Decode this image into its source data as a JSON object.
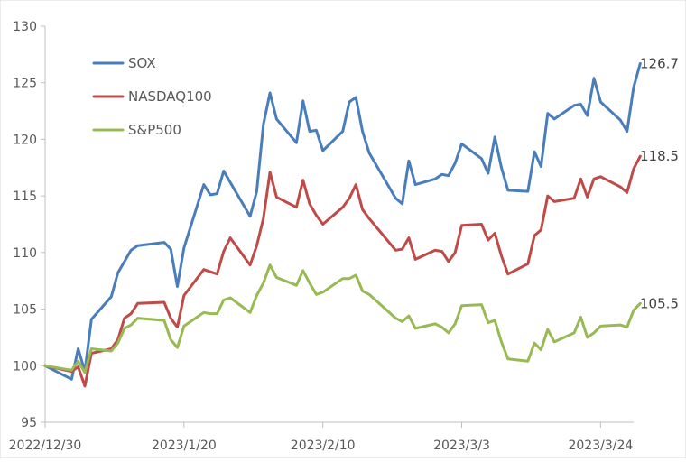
{
  "chart_data": {
    "type": "line",
    "title": "",
    "xlabel": "",
    "ylabel": "",
    "ylim": [
      95,
      130
    ],
    "yticks": [
      95,
      100,
      105,
      110,
      115,
      120,
      125,
      130
    ],
    "xlim": [
      "2022/12/30",
      "2023/3/29"
    ],
    "xticks": [
      "2022/12/30",
      "2023/1/20",
      "2023/2/10",
      "2023/3/3",
      "2023/3/24"
    ],
    "grid": false,
    "legend": "top-left",
    "series": [
      {
        "name": "SOX",
        "color": "#4a7ebb",
        "end_label": "126.7",
        "points": [
          [
            "2022/12/30",
            100.0
          ],
          [
            "2023/1/3",
            98.8
          ],
          [
            "2023/1/4",
            101.5
          ],
          [
            "2023/1/5",
            99.5
          ],
          [
            "2023/1/6",
            104.1
          ],
          [
            "2023/1/9",
            106.1
          ],
          [
            "2023/1/10",
            108.2
          ],
          [
            "2023/1/12",
            110.2
          ],
          [
            "2023/1/13",
            110.6
          ],
          [
            "2023/1/17",
            110.9
          ],
          [
            "2023/1/18",
            110.3
          ],
          [
            "2023/1/19",
            107.0
          ],
          [
            "2023/1/20",
            110.4
          ],
          [
            "2023/1/23",
            116.0
          ],
          [
            "2023/1/24",
            115.1
          ],
          [
            "2023/1/25",
            115.2
          ],
          [
            "2023/1/26",
            117.2
          ],
          [
            "2023/1/27",
            116.2
          ],
          [
            "2023/1/30",
            113.2
          ],
          [
            "2023/1/31",
            115.4
          ],
          [
            "2023/2/1",
            121.3
          ],
          [
            "2023/2/2",
            124.1
          ],
          [
            "2023/2/3",
            121.8
          ],
          [
            "2023/2/6",
            119.7
          ],
          [
            "2023/2/7",
            123.4
          ],
          [
            "2023/2/8",
            120.7
          ],
          [
            "2023/2/9",
            120.8
          ],
          [
            "2023/2/10",
            119.0
          ],
          [
            "2023/2/13",
            120.7
          ],
          [
            "2023/2/14",
            123.3
          ],
          [
            "2023/2/15",
            123.7
          ],
          [
            "2023/2/16",
            120.7
          ],
          [
            "2023/2/17",
            118.8
          ],
          [
            "2023/2/21",
            114.8
          ],
          [
            "2023/2/22",
            114.3
          ],
          [
            "2023/2/23",
            118.1
          ],
          [
            "2023/2/24",
            116.0
          ],
          [
            "2023/2/27",
            116.5
          ],
          [
            "2023/2/28",
            116.9
          ],
          [
            "2023/3/1",
            116.8
          ],
          [
            "2023/3/2",
            117.9
          ],
          [
            "2023/3/3",
            119.6
          ],
          [
            "2023/3/6",
            118.3
          ],
          [
            "2023/3/7",
            117.0
          ],
          [
            "2023/3/8",
            120.2
          ],
          [
            "2023/3/9",
            117.5
          ],
          [
            "2023/3/10",
            115.5
          ],
          [
            "2023/3/13",
            115.4
          ],
          [
            "2023/3/14",
            118.9
          ],
          [
            "2023/3/15",
            117.6
          ],
          [
            "2023/3/16",
            122.3
          ],
          [
            "2023/3/17",
            121.8
          ],
          [
            "2023/3/20",
            123.0
          ],
          [
            "2023/3/21",
            123.1
          ],
          [
            "2023/3/22",
            122.1
          ],
          [
            "2023/3/23",
            125.4
          ],
          [
            "2023/3/24",
            123.3
          ],
          [
            "2023/3/27",
            121.7
          ],
          [
            "2023/3/28",
            120.7
          ],
          [
            "2023/3/29",
            124.6
          ],
          [
            "2023/3/30",
            126.7
          ]
        ]
      },
      {
        "name": "NASDAQ100",
        "color": "#be4b48",
        "end_label": "118.5",
        "points": [
          [
            "2022/12/30",
            100.0
          ],
          [
            "2023/1/3",
            99.5
          ],
          [
            "2023/1/4",
            99.9
          ],
          [
            "2023/1/5",
            98.2
          ],
          [
            "2023/1/6",
            101.1
          ],
          [
            "2023/1/9",
            101.5
          ],
          [
            "2023/1/10",
            102.3
          ],
          [
            "2023/1/11",
            104.2
          ],
          [
            "2023/1/12",
            104.6
          ],
          [
            "2023/1/13",
            105.5
          ],
          [
            "2023/1/17",
            105.6
          ],
          [
            "2023/1/18",
            104.2
          ],
          [
            "2023/1/19",
            103.4
          ],
          [
            "2023/1/20",
            106.2
          ],
          [
            "2023/1/23",
            108.5
          ],
          [
            "2023/1/24",
            108.3
          ],
          [
            "2023/1/25",
            108.1
          ],
          [
            "2023/1/26",
            110.1
          ],
          [
            "2023/1/27",
            111.3
          ],
          [
            "2023/1/30",
            108.9
          ],
          [
            "2023/1/31",
            110.6
          ],
          [
            "2023/2/1",
            113.0
          ],
          [
            "2023/2/2",
            117.1
          ],
          [
            "2023/2/3",
            114.9
          ],
          [
            "2023/2/6",
            114.0
          ],
          [
            "2023/2/7",
            116.4
          ],
          [
            "2023/2/8",
            114.3
          ],
          [
            "2023/2/9",
            113.3
          ],
          [
            "2023/2/10",
            112.5
          ],
          [
            "2023/2/13",
            114.0
          ],
          [
            "2023/2/14",
            114.8
          ],
          [
            "2023/2/15",
            116.0
          ],
          [
            "2023/2/16",
            113.8
          ],
          [
            "2023/2/17",
            113.0
          ],
          [
            "2023/2/21",
            110.2
          ],
          [
            "2023/2/22",
            110.3
          ],
          [
            "2023/2/23",
            111.3
          ],
          [
            "2023/2/24",
            109.4
          ],
          [
            "2023/2/27",
            110.2
          ],
          [
            "2023/2/28",
            110.1
          ],
          [
            "2023/3/1",
            109.2
          ],
          [
            "2023/3/2",
            110.0
          ],
          [
            "2023/3/3",
            112.4
          ],
          [
            "2023/3/6",
            112.5
          ],
          [
            "2023/3/7",
            111.1
          ],
          [
            "2023/3/8",
            111.7
          ],
          [
            "2023/3/9",
            109.7
          ],
          [
            "2023/3/10",
            108.1
          ],
          [
            "2023/3/13",
            109.0
          ],
          [
            "2023/3/14",
            111.5
          ],
          [
            "2023/3/15",
            112.0
          ],
          [
            "2023/3/16",
            115.0
          ],
          [
            "2023/3/17",
            114.5
          ],
          [
            "2023/3/20",
            114.8
          ],
          [
            "2023/3/21",
            116.5
          ],
          [
            "2023/3/22",
            114.9
          ],
          [
            "2023/3/23",
            116.5
          ],
          [
            "2023/3/24",
            116.7
          ],
          [
            "2023/3/27",
            115.8
          ],
          [
            "2023/3/28",
            115.3
          ],
          [
            "2023/3/29",
            117.4
          ],
          [
            "2023/3/30",
            118.5
          ]
        ]
      },
      {
        "name": "S&P500",
        "color": "#98b954",
        "end_label": "105.5",
        "points": [
          [
            "2022/12/30",
            100.0
          ],
          [
            "2023/1/3",
            99.6
          ],
          [
            "2023/1/4",
            100.4
          ],
          [
            "2023/1/5",
            99.4
          ],
          [
            "2023/1/6",
            101.5
          ],
          [
            "2023/1/9",
            101.3
          ],
          [
            "2023/1/10",
            102.0
          ],
          [
            "2023/1/11",
            103.3
          ],
          [
            "2023/1/12",
            103.6
          ],
          [
            "2023/1/13",
            104.2
          ],
          [
            "2023/1/17",
            104.0
          ],
          [
            "2023/1/18",
            102.3
          ],
          [
            "2023/1/19",
            101.6
          ],
          [
            "2023/1/20",
            103.5
          ],
          [
            "2023/1/23",
            104.7
          ],
          [
            "2023/1/24",
            104.6
          ],
          [
            "2023/1/25",
            104.6
          ],
          [
            "2023/1/26",
            105.8
          ],
          [
            "2023/1/27",
            106.0
          ],
          [
            "2023/1/30",
            104.7
          ],
          [
            "2023/1/31",
            106.2
          ],
          [
            "2023/2/1",
            107.3
          ],
          [
            "2023/2/2",
            108.9
          ],
          [
            "2023/2/3",
            107.8
          ],
          [
            "2023/2/6",
            107.1
          ],
          [
            "2023/2/7",
            108.4
          ],
          [
            "2023/2/8",
            107.3
          ],
          [
            "2023/2/9",
            106.3
          ],
          [
            "2023/2/10",
            106.5
          ],
          [
            "2023/2/13",
            107.7
          ],
          [
            "2023/2/14",
            107.7
          ],
          [
            "2023/2/15",
            108.0
          ],
          [
            "2023/2/16",
            106.6
          ],
          [
            "2023/2/17",
            106.3
          ],
          [
            "2023/2/21",
            104.2
          ],
          [
            "2023/2/22",
            103.9
          ],
          [
            "2023/2/23",
            104.4
          ],
          [
            "2023/2/24",
            103.3
          ],
          [
            "2023/2/27",
            103.7
          ],
          [
            "2023/2/28",
            103.4
          ],
          [
            "2023/3/1",
            102.9
          ],
          [
            "2023/3/2",
            103.7
          ],
          [
            "2023/3/3",
            105.3
          ],
          [
            "2023/3/6",
            105.4
          ],
          [
            "2023/3/7",
            103.8
          ],
          [
            "2023/3/8",
            104.0
          ],
          [
            "2023/3/9",
            102.1
          ],
          [
            "2023/3/10",
            100.6
          ],
          [
            "2023/3/13",
            100.4
          ],
          [
            "2023/3/14",
            102.0
          ],
          [
            "2023/3/15",
            101.4
          ],
          [
            "2023/3/16",
            103.2
          ],
          [
            "2023/3/17",
            102.1
          ],
          [
            "2023/3/20",
            102.9
          ],
          [
            "2023/3/21",
            104.3
          ],
          [
            "2023/3/22",
            102.5
          ],
          [
            "2023/3/23",
            102.9
          ],
          [
            "2023/3/24",
            103.5
          ],
          [
            "2023/3/27",
            103.6
          ],
          [
            "2023/3/28",
            103.4
          ],
          [
            "2023/3/29",
            104.9
          ],
          [
            "2023/3/30",
            105.5
          ]
        ]
      }
    ]
  }
}
